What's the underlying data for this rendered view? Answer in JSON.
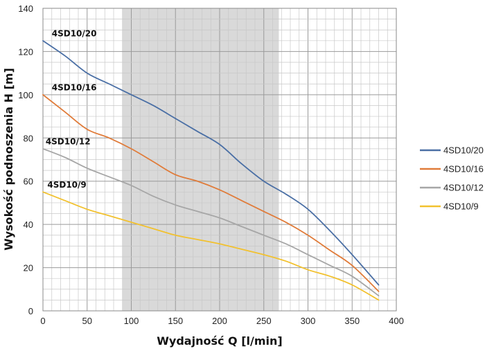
{
  "chart_data": {
    "type": "line",
    "xlabel": "Wydajność Q [l/min]",
    "ylabel": "Wysokość podnoszenia H [m]",
    "xlim": [
      0,
      400
    ],
    "ylim": [
      0,
      140
    ],
    "x_ticks": [
      "0",
      "50",
      "100",
      "150",
      "200",
      "250",
      "300",
      "350",
      "400"
    ],
    "y_ticks": [
      "0",
      "20",
      "40",
      "60",
      "80",
      "100",
      "120",
      "140"
    ],
    "grid": true,
    "highlight_band": {
      "x_start": 90,
      "x_end": 267,
      "color": "#d9d9d9"
    },
    "legend_position": "right",
    "series": [
      {
        "name": "4SD10/20",
        "color": "#4a6fa5",
        "x": [
          0,
          25,
          50,
          75,
          100,
          125,
          150,
          175,
          200,
          225,
          250,
          275,
          300,
          325,
          350,
          380
        ],
        "y": [
          125,
          118,
          110,
          105,
          100,
          95,
          89,
          83,
          77,
          68,
          60,
          54,
          47,
          37,
          26,
          12
        ]
      },
      {
        "name": "4SD10/16",
        "color": "#e07b39",
        "x": [
          0,
          25,
          50,
          75,
          100,
          125,
          150,
          175,
          200,
          225,
          250,
          275,
          300,
          325,
          350,
          380
        ],
        "y": [
          100,
          92,
          84,
          80,
          75,
          69,
          63,
          60,
          56,
          51,
          46,
          41,
          35,
          28,
          21,
          9
        ]
      },
      {
        "name": "4SD10/12",
        "color": "#a6a6a6",
        "x": [
          0,
          25,
          50,
          75,
          100,
          125,
          150,
          175,
          200,
          225,
          250,
          275,
          300,
          325,
          350,
          380
        ],
        "y": [
          75,
          71,
          66,
          62,
          58,
          53,
          49,
          46,
          43,
          39,
          35,
          31,
          26,
          21,
          16,
          7
        ]
      },
      {
        "name": "4SD10/9",
        "color": "#f2c12e",
        "x": [
          0,
          25,
          50,
          75,
          100,
          125,
          150,
          175,
          200,
          225,
          250,
          275,
          300,
          325,
          350,
          380
        ],
        "y": [
          55,
          51,
          47,
          44,
          41,
          38,
          35,
          33,
          31,
          28.5,
          26,
          23,
          19,
          16,
          12,
          5
        ]
      }
    ],
    "curve_labels": [
      {
        "text": "4SD10/20",
        "x": 10,
        "y": 127
      },
      {
        "text": "4SD10/16",
        "x": 10,
        "y": 102
      },
      {
        "text": "4SD10/12",
        "x": 3,
        "y": 77
      },
      {
        "text": "4SD10/9",
        "x": 5,
        "y": 57
      }
    ]
  }
}
